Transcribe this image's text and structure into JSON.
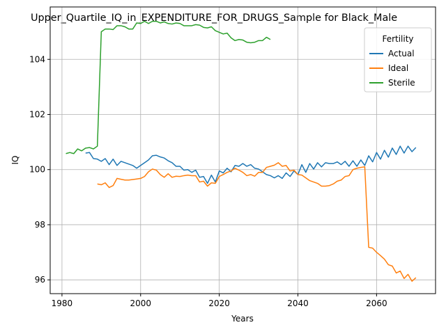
{
  "chart_data": {
    "type": "line",
    "title": "Upper_Quartile_IQ_in_EXPENDITURE_FOR_DRUGS_Sample for Black_Male",
    "xlabel": "Years",
    "ylabel": "IQ",
    "xlim": [
      1977,
      2075
    ],
    "ylim": [
      95.5,
      105.9
    ],
    "x_ticks": [
      1980,
      2000,
      2020,
      2040,
      2060
    ],
    "y_ticks": [
      96,
      98,
      100,
      102,
      104
    ],
    "grid": true,
    "legend": {
      "title": "Fertility",
      "placement": "top-right"
    },
    "series": [
      {
        "name": "Actual",
        "color": "#1f77b4",
        "x": [
          1986,
          1987,
          1988,
          1989,
          1990,
          1991,
          1992,
          1993,
          1994,
          1995,
          1996,
          1997,
          1998,
          1999,
          2000,
          2001,
          2002,
          2003,
          2004,
          2005,
          2006,
          2007,
          2008,
          2009,
          2010,
          2011,
          2012,
          2013,
          2014,
          2015,
          2016,
          2017,
          2018,
          2019,
          2020,
          2021,
          2022,
          2023,
          2024,
          2025,
          2026,
          2027,
          2028,
          2029,
          2030,
          2031,
          2032,
          2033,
          2034,
          2035,
          2036,
          2037,
          2038,
          2039,
          2040,
          2041,
          2042,
          2043,
          2044,
          2045,
          2046,
          2047,
          2048,
          2049,
          2050,
          2051,
          2052,
          2053,
          2054,
          2055,
          2056,
          2057,
          2058,
          2059,
          2060,
          2061,
          2062,
          2063,
          2064,
          2065,
          2066,
          2067,
          2068,
          2069,
          2070
        ],
        "values": [
          100.6,
          100.62,
          100.4,
          100.38,
          100.3,
          100.4,
          100.18,
          100.38,
          100.15,
          100.3,
          100.25,
          100.2,
          100.15,
          100.05,
          100.15,
          100.25,
          100.35,
          100.5,
          100.52,
          100.46,
          100.42,
          100.32,
          100.25,
          100.12,
          100.12,
          99.98,
          100.0,
          99.9,
          99.98,
          99.72,
          99.75,
          99.5,
          99.8,
          99.55,
          99.95,
          99.88,
          100.05,
          99.92,
          100.15,
          100.12,
          100.22,
          100.12,
          100.18,
          100.05,
          100.02,
          99.92,
          99.82,
          99.78,
          99.7,
          99.78,
          99.68,
          99.88,
          99.75,
          99.95,
          99.82,
          100.18,
          99.9,
          100.22,
          100.02,
          100.25,
          100.1,
          100.25,
          100.22,
          100.22,
          100.28,
          100.18,
          100.3,
          100.12,
          100.32,
          100.12,
          100.35,
          100.15,
          100.5,
          100.28,
          100.62,
          100.38,
          100.7,
          100.45,
          100.78,
          100.55,
          100.85,
          100.6,
          100.85,
          100.65,
          100.8
        ]
      },
      {
        "name": "Ideal",
        "color": "#ff7f0e",
        "x": [
          1989,
          1990,
          1991,
          1992,
          1993,
          1994,
          1995,
          1996,
          1997,
          1998,
          1999,
          2000,
          2001,
          2002,
          2003,
          2004,
          2005,
          2006,
          2007,
          2008,
          2009,
          2010,
          2011,
          2012,
          2013,
          2014,
          2015,
          2016,
          2017,
          2018,
          2019,
          2020,
          2021,
          2022,
          2023,
          2024,
          2025,
          2026,
          2027,
          2028,
          2029,
          2030,
          2031,
          2032,
          2033,
          2034,
          2035,
          2036,
          2037,
          2038,
          2039,
          2040,
          2041,
          2042,
          2043,
          2044,
          2045,
          2046,
          2047,
          2048,
          2049,
          2050,
          2051,
          2052,
          2053,
          2054,
          2055,
          2056,
          2057,
          2058,
          2059,
          2060,
          2061,
          2062,
          2063,
          2064,
          2065,
          2066,
          2067,
          2068,
          2069,
          2070
        ],
        "values": [
          99.48,
          99.45,
          99.52,
          99.35,
          99.42,
          99.68,
          99.65,
          99.62,
          99.62,
          99.64,
          99.66,
          99.68,
          99.75,
          99.92,
          100.02,
          99.98,
          99.82,
          99.72,
          99.85,
          99.72,
          99.76,
          99.75,
          99.78,
          99.8,
          99.78,
          99.78,
          99.55,
          99.58,
          99.4,
          99.52,
          99.5,
          99.75,
          99.82,
          99.9,
          99.95,
          100.05,
          99.98,
          99.9,
          99.78,
          99.82,
          99.76,
          99.9,
          99.9,
          100.08,
          100.12,
          100.16,
          100.25,
          100.12,
          100.15,
          99.95,
          99.98,
          99.82,
          99.8,
          99.7,
          99.6,
          99.55,
          99.5,
          99.4,
          99.4,
          99.42,
          99.48,
          99.58,
          99.62,
          99.75,
          99.78,
          100.0,
          100.05,
          100.08,
          100.1,
          97.18,
          97.15,
          97.0,
          96.88,
          96.75,
          96.55,
          96.5,
          96.25,
          96.32,
          96.05,
          96.2,
          95.95,
          96.08
        ]
      },
      {
        "name": "Sterile",
        "color": "#2ca02c",
        "x": [
          1981,
          1982,
          1983,
          1984,
          1985,
          1986,
          1987,
          1988,
          1989,
          1990,
          1991,
          1992,
          1993,
          1994,
          1995,
          1996,
          1997,
          1998,
          1999,
          2000,
          2001,
          2002,
          2003,
          2004,
          2005,
          2006,
          2007,
          2008,
          2009,
          2010,
          2011,
          2012,
          2013,
          2014,
          2015,
          2016,
          2017,
          2018,
          2019,
          2020,
          2021,
          2022,
          2023,
          2024,
          2025,
          2026,
          2027,
          2028,
          2029,
          2030,
          2031,
          2032,
          2033
        ],
        "values": [
          100.58,
          100.62,
          100.58,
          100.75,
          100.68,
          100.78,
          100.8,
          100.75,
          100.85,
          105.0,
          105.1,
          105.1,
          105.08,
          105.22,
          105.22,
          105.18,
          105.1,
          105.1,
          105.32,
          105.3,
          105.38,
          105.3,
          105.38,
          105.38,
          105.32,
          105.36,
          105.3,
          105.28,
          105.32,
          105.3,
          105.22,
          105.22,
          105.22,
          105.26,
          105.24,
          105.16,
          105.14,
          105.18,
          105.04,
          104.98,
          104.92,
          104.95,
          104.78,
          104.68,
          104.72,
          104.7,
          104.62,
          104.6,
          104.62,
          104.68,
          104.68,
          104.8,
          104.72
        ]
      }
    ]
  }
}
